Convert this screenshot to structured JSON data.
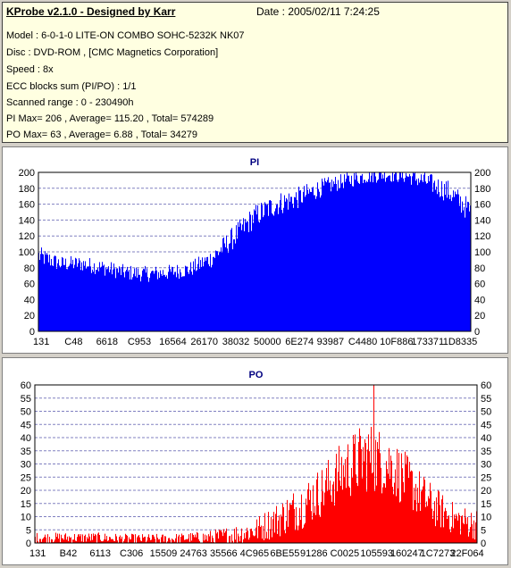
{
  "header": {
    "title": "KProbe v2.1.0 - Designed by Karr",
    "date": "Date : 2005/02/11 7:24:25"
  },
  "info": [
    "Model : 6-0-1-0 LITE-ON COMBO SOHC-5232K NK07",
    "Disc : DVD-ROM ,  [CMC Magnetics Corporation]",
    "Speed : 8x",
    "ECC blocks sum (PI/PO) : 1/1",
    "Scanned range : 0 - 230490h",
    "PI Max= 206 , Average= 115.20 , Total= 574289",
    "PO Max= 63 , Average= 6.88 , Total= 34279"
  ],
  "colors": {
    "pi": "#0000ff",
    "po": "#ff0000",
    "grid": "#8080c0",
    "info_bg": "#ffffe1"
  },
  "chart_data": [
    {
      "type": "area",
      "title": "PI",
      "ylim": [
        0,
        200
      ],
      "yticks": [
        0,
        20,
        40,
        60,
        80,
        100,
        120,
        140,
        160,
        180,
        200
      ],
      "xticks": [
        "131",
        "C48",
        "6618",
        "C953",
        "16564",
        "26170",
        "38032",
        "50000",
        "6E274",
        "93987",
        "C4480",
        "10F886",
        "173371",
        "1D8335"
      ],
      "grid": true,
      "color": "#0000ff",
      "x": [
        0,
        5,
        10,
        15,
        20,
        25,
        30,
        35,
        40,
        45,
        50,
        55,
        60,
        65,
        70,
        75,
        80,
        85,
        90,
        95,
        100
      ],
      "values": [
        95,
        85,
        85,
        80,
        74,
        72,
        74,
        78,
        92,
        118,
        145,
        160,
        168,
        180,
        188,
        195,
        198,
        196,
        188,
        175,
        150
      ],
      "spread": [
        12,
        10,
        10,
        10,
        10,
        10,
        10,
        10,
        12,
        15,
        15,
        15,
        14,
        12,
        10,
        10,
        10,
        10,
        12,
        15,
        15
      ],
      "xrange": [
        0,
        100
      ]
    },
    {
      "type": "area",
      "title": "PO",
      "ylim": [
        0,
        60
      ],
      "yticks": [
        0,
        5,
        10,
        15,
        20,
        25,
        30,
        35,
        40,
        45,
        50,
        55,
        60
      ],
      "xticks": [
        "131",
        "B42",
        "6113",
        "C306",
        "15509",
        "24763",
        "35566",
        "4C965",
        "6BE55",
        "91286",
        "C0025",
        "105593",
        "160247",
        "1C7273",
        "22F064"
      ],
      "grid": true,
      "color": "#ff0000",
      "x": [
        0,
        5,
        10,
        15,
        20,
        25,
        30,
        35,
        40,
        45,
        50,
        55,
        60,
        65,
        70,
        75,
        80,
        85,
        90,
        95,
        100
      ],
      "values": [
        2,
        2,
        2,
        2,
        1.5,
        1.5,
        1.5,
        2,
        2,
        3,
        5,
        9,
        14,
        20,
        28,
        33,
        30,
        22,
        14,
        9,
        7
      ],
      "spread": [
        2,
        2,
        2,
        2,
        2,
        2,
        2,
        2,
        3,
        4,
        5,
        7,
        9,
        10,
        12,
        14,
        12,
        10,
        8,
        6,
        6
      ],
      "peak": 63,
      "xrange": [
        0,
        100
      ]
    }
  ]
}
